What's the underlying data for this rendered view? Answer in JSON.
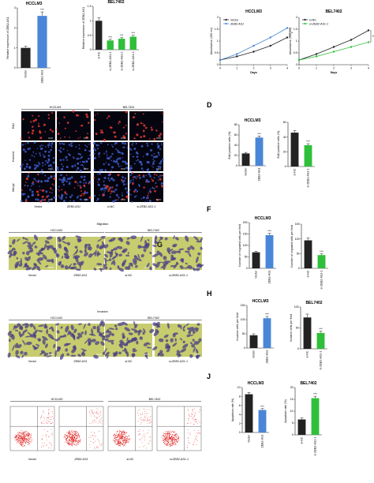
{
  "figure": {
    "panel_letters": [
      "D",
      "F",
      "H",
      "J"
    ],
    "micrographs": {
      "edu": {
        "row_labels": [
          "EdU",
          "Hoechst",
          "Merge"
        ],
        "group_labels": [
          "HCCLM3",
          "BEL7402"
        ],
        "column_labels": [
          "Vector",
          "ZEB2-AS1",
          "si-NC",
          "si-ZEB2-AS1-1"
        ]
      },
      "migration": {
        "title": "Migration",
        "group_labels": [
          "HCCLM3",
          "BEL7402"
        ],
        "column_labels": [
          "Vector",
          "ZEB2-AS1",
          "si-NC",
          "si-ZEB2-AS1-1"
        ],
        "overlap_letter": "G"
      },
      "invasion": {
        "title": "Invasion",
        "group_labels": [
          "HCCLM3",
          "BEL7402"
        ],
        "column_labels": [
          "Vector",
          "ZEB2-AS1",
          "si-NC",
          "si-ZEB2-AS1-1"
        ]
      },
      "flow": {
        "group_labels": [
          "HCCLM3",
          "BEL7402"
        ],
        "column_labels": [
          "Vector",
          "ZEB2-AS1",
          "si-NC",
          "si-ZEB2-AS1-1"
        ]
      }
    },
    "colors": {
      "control": "#222222",
      "zeb2_overexpression": "#4a86d8",
      "zeb2_knockdown": "#2fbf3a",
      "cell_red": "#e43a2f",
      "nuclei_blue": "#3d5cc9",
      "transwell_bg": "#c7cc6e",
      "transwell_cells": "#4a3f86"
    },
    "significance": "***"
  },
  "chart_data": [
    {
      "id": "expr-hcclm3",
      "type": "bar",
      "title": "HCCLM3",
      "ylabel": "Relative expression of ZEB2-AS1",
      "categories": [
        "Vector",
        "ZEB2-AS1"
      ],
      "values": [
        1.0,
        2.6
      ],
      "errors": [
        0.08,
        0.2
      ],
      "ylim": [
        0,
        3
      ],
      "yticks": [
        0,
        1,
        2,
        3
      ],
      "annotations": [
        "",
        "***"
      ]
    },
    {
      "id": "expr-bel7402",
      "type": "bar",
      "title": "BEL7402",
      "ylabel": "Relative expression of ZEB2-AS1",
      "categories": [
        "si-NC",
        "si-ZEB2-AS1-1",
        "si-ZEB2-AS1-2",
        "si-ZEB2-AS1-3"
      ],
      "values": [
        1.0,
        0.32,
        0.38,
        0.45
      ],
      "errors": [
        0.1,
        0.04,
        0.04,
        0.05
      ],
      "ylim": [
        0,
        1.5
      ],
      "yticks": [
        0,
        0.5,
        1.0,
        1.5
      ],
      "annotations": [
        "",
        "***",
        "***",
        "***"
      ]
    },
    {
      "id": "cck8-hcclm3",
      "type": "line",
      "title": "HCCLM3",
      "xlabel": "Days",
      "ylabel": "Absorbance (450 nm)",
      "x": [
        0,
        1,
        2,
        3,
        4
      ],
      "ylim": [
        0,
        2
      ],
      "yticks": [
        0,
        0.5,
        1.0,
        1.5,
        2.0
      ],
      "series": [
        {
          "name": "Vector",
          "values": [
            0.2,
            0.35,
            0.55,
            0.8,
            1.15
          ]
        },
        {
          "name": "ZEB2-AS1",
          "values": [
            0.2,
            0.45,
            0.8,
            1.15,
            1.55
          ]
        }
      ],
      "annotations": [
        "**"
      ]
    },
    {
      "id": "cck8-bel7402",
      "type": "line",
      "title": "BEL7402",
      "xlabel": "Days",
      "ylabel": "Absorbance (450 nm)",
      "x": [
        0,
        1,
        2,
        3,
        4
      ],
      "ylim": [
        0,
        2
      ],
      "yticks": [
        0,
        0.5,
        1.0,
        1.5,
        2.0
      ],
      "series": [
        {
          "name": "si-NC",
          "values": [
            0.2,
            0.45,
            0.75,
            1.05,
            1.45
          ]
        },
        {
          "name": "si-ZEB2-AS1-1",
          "values": [
            0.2,
            0.35,
            0.55,
            0.75,
            0.95
          ]
        }
      ],
      "annotations": [
        "**"
      ]
    },
    {
      "id": "edu-hcclm3",
      "type": "bar",
      "title": "HCCLM3",
      "ylabel": "EdU positive cells (%)",
      "categories": [
        "Vector",
        "ZEB2-AS1"
      ],
      "values": [
        24,
        55
      ],
      "errors": [
        2,
        3
      ],
      "ylim": [
        0,
        80
      ],
      "yticks": [
        0,
        20,
        40,
        60,
        80
      ],
      "annotations": [
        "",
        "***"
      ]
    },
    {
      "id": "edu-bel7402",
      "type": "bar",
      "title": "",
      "ylabel": "EdU positive cells (%)",
      "categories": [
        "si-NC",
        "si-ZEB2-AS1-1"
      ],
      "values": [
        46,
        29
      ],
      "errors": [
        3,
        2
      ],
      "ylim": [
        0,
        60
      ],
      "yticks": [
        0,
        20,
        40,
        60
      ],
      "annotations": [
        "",
        "***"
      ]
    },
    {
      "id": "mig-hcclm3",
      "type": "bar",
      "title": "HCCLM3",
      "ylabel": "Number of migrated cells per field",
      "categories": [
        "Vector",
        "ZEB2-AS1"
      ],
      "values": [
        70,
        145
      ],
      "errors": [
        5,
        8
      ],
      "ylim": [
        0,
        200
      ],
      "yticks": [
        0,
        50,
        100,
        150,
        200
      ],
      "annotations": [
        "",
        "***"
      ]
    },
    {
      "id": "mig-bel7402",
      "type": "bar",
      "title": "",
      "ylabel": "Number of migrated cells per field",
      "categories": [
        "si-NC",
        "si-ZEB2-AS1-1"
      ],
      "values": [
        95,
        45
      ],
      "errors": [
        8,
        4
      ],
      "ylim": [
        0,
        150
      ],
      "yticks": [
        0,
        50,
        100,
        150
      ],
      "annotations": [
        "",
        "***"
      ]
    },
    {
      "id": "inv-hcclm3",
      "type": "bar",
      "title": "HCCLM3",
      "ylabel": "Invasive cells per field",
      "categories": [
        "Vector",
        "ZEB2-AS1"
      ],
      "values": [
        45,
        105
      ],
      "errors": [
        5,
        6
      ],
      "ylim": [
        0,
        150
      ],
      "yticks": [
        0,
        50,
        100,
        150
      ],
      "annotations": [
        "",
        "***"
      ]
    },
    {
      "id": "inv-bel7402",
      "type": "bar",
      "title": "BEL7402",
      "ylabel": "Invasive cells per field",
      "categories": [
        "si-NC",
        "si-ZEB2-AS1-1"
      ],
      "values": [
        75,
        38
      ],
      "errors": [
        8,
        4
      ],
      "ylim": [
        0,
        100
      ],
      "yticks": [
        0,
        50,
        100
      ],
      "annotations": [
        "",
        "***"
      ]
    },
    {
      "id": "apop-hcclm3",
      "type": "bar",
      "title": "HCCLM3",
      "ylabel": "Apoptosis rate (%)",
      "categories": [
        "Vector",
        "ZEB2-AS1"
      ],
      "values": [
        8.5,
        5.0
      ],
      "errors": [
        0.4,
        0.3
      ],
      "ylim": [
        0,
        10
      ],
      "yticks": [
        0,
        2,
        4,
        6,
        8,
        10
      ],
      "annotations": [
        "",
        "***"
      ]
    },
    {
      "id": "apop-bel7402",
      "type": "bar",
      "title": "BEL7402",
      "ylabel": "Apoptosis rate (%)",
      "categories": [
        "si-NC",
        "si-ZEB2-AS1-1"
      ],
      "values": [
        6.5,
        15.5
      ],
      "errors": [
        0.6,
        0.8
      ],
      "ylim": [
        0,
        20
      ],
      "yticks": [
        0,
        5,
        10,
        15,
        20
      ],
      "annotations": [
        "",
        "***"
      ]
    }
  ]
}
